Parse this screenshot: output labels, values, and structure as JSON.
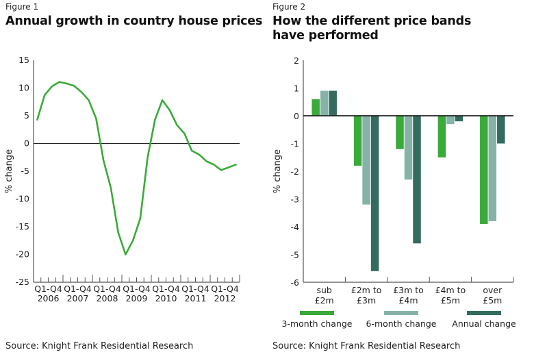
{
  "figures": [
    {
      "label": "Figure 1",
      "title_lines": [
        "Annual growth in country house prices"
      ],
      "source": "Source: Knight Frank Residential Research"
    },
    {
      "label": "Figure 2",
      "title_lines": [
        "How the different price bands",
        "have performed"
      ],
      "source": "Source: Knight Frank Residential Research"
    }
  ],
  "colors": {
    "line": "#3aaa3a",
    "three_month": "#3aaa3a",
    "six_month": "#86b3a8",
    "annual": "#336b5f",
    "axis": "#333333"
  },
  "chart_data": [
    {
      "type": "line",
      "title": "Annual growth in country house prices",
      "xlabel": "",
      "ylabel": "% change",
      "ylim": [
        -25,
        15
      ],
      "yticks": [
        15,
        10,
        5,
        0,
        -5,
        -10,
        -15,
        -20,
        -25
      ],
      "x_groups": [
        {
          "top": "Q1-Q4",
          "bottom": "2006"
        },
        {
          "top": "Q1-Q4",
          "bottom": "2007"
        },
        {
          "top": "Q1-Q4",
          "bottom": "2008"
        },
        {
          "top": "Q1-Q4",
          "bottom": "2009"
        },
        {
          "top": "Q1-Q4",
          "bottom": "2010"
        },
        {
          "top": "Q1-Q4",
          "bottom": "2011"
        },
        {
          "top": "Q1-Q4",
          "bottom": "2012"
        }
      ],
      "periods_per_group": 4,
      "grid": false,
      "zero_line": true,
      "series": [
        {
          "name": "Annual growth",
          "values": [
            4.3,
            8.7,
            10.3,
            11.1,
            10.8,
            10.4,
            9.3,
            7.8,
            4.5,
            -3.0,
            -8.0,
            -16.0,
            -20.0,
            -17.5,
            -13.5,
            -2.5,
            4.3,
            7.8,
            6.0,
            3.3,
            1.8,
            -1.3,
            -2.0,
            -3.2,
            -3.8,
            -4.8,
            -4.3,
            -3.8
          ]
        }
      ]
    },
    {
      "type": "bar",
      "title": "How the different price bands have performed",
      "xlabel": "",
      "ylabel": "% change",
      "ylim": [
        -6,
        2
      ],
      "yticks": [
        2,
        1,
        0,
        -1,
        -2,
        -3,
        -4,
        -5,
        -6
      ],
      "categories": [
        {
          "top": "sub",
          "bottom": "£2m"
        },
        {
          "top": "£2m to",
          "bottom": "£3m"
        },
        {
          "top": "£3m to",
          "bottom": "£4m"
        },
        {
          "top": "£4m to",
          "bottom": "£5m"
        },
        {
          "top": "over",
          "bottom": "£5m"
        }
      ],
      "grid": false,
      "legend_position": "bottom",
      "series": [
        {
          "name": "3-month change",
          "color_key": "three_month",
          "values": [
            0.6,
            -1.8,
            -1.2,
            -1.5,
            -3.9
          ]
        },
        {
          "name": "6-month change",
          "color_key": "six_month",
          "values": [
            0.9,
            -3.2,
            -2.3,
            -0.3,
            -3.8
          ]
        },
        {
          "name": "Annual change",
          "color_key": "annual",
          "values": [
            0.9,
            -5.6,
            -4.6,
            -0.2,
            -1.0
          ]
        }
      ]
    }
  ]
}
